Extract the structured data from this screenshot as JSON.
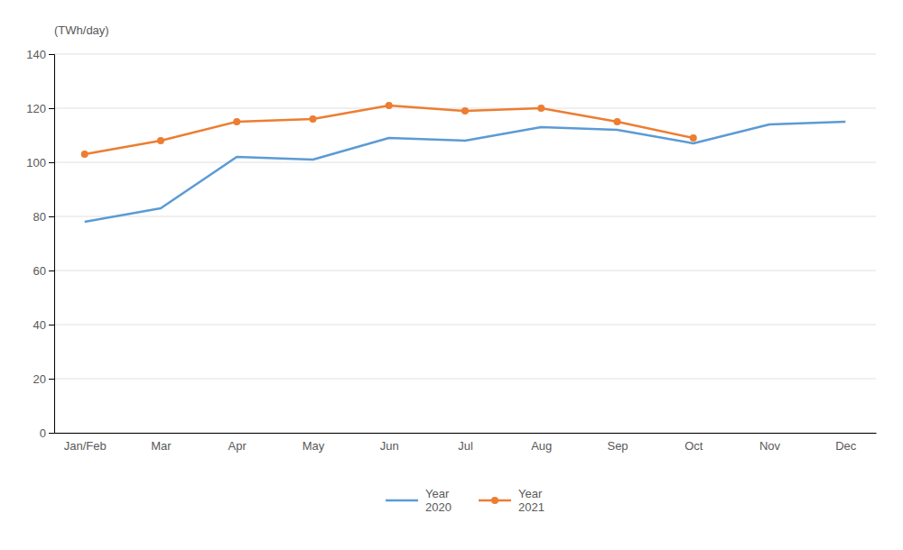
{
  "chart_data": {
    "type": "line",
    "y_label": "(TWh/day)",
    "categories": [
      "Jan/Feb",
      "Mar",
      "Apr",
      "May",
      "Jun",
      "Jul",
      "Aug",
      "Sep",
      "Oct",
      "Nov",
      "Dec"
    ],
    "series": [
      {
        "name": "Year\n2020",
        "color": "#5B9BD5",
        "marker": "none",
        "values": [
          78,
          83,
          102,
          101,
          109,
          108,
          113,
          112,
          107,
          114,
          115
        ]
      },
      {
        "name": "Year\n2021",
        "color": "#ED7D31",
        "marker": "circle",
        "values": [
          103,
          108,
          115,
          116,
          121,
          119,
          120,
          115,
          109,
          null,
          null
        ]
      }
    ],
    "ylim": [
      0,
      140
    ],
    "yticks": [
      0,
      20,
      40,
      60,
      80,
      100,
      120,
      140
    ],
    "grid": true,
    "legend": "bottom"
  }
}
